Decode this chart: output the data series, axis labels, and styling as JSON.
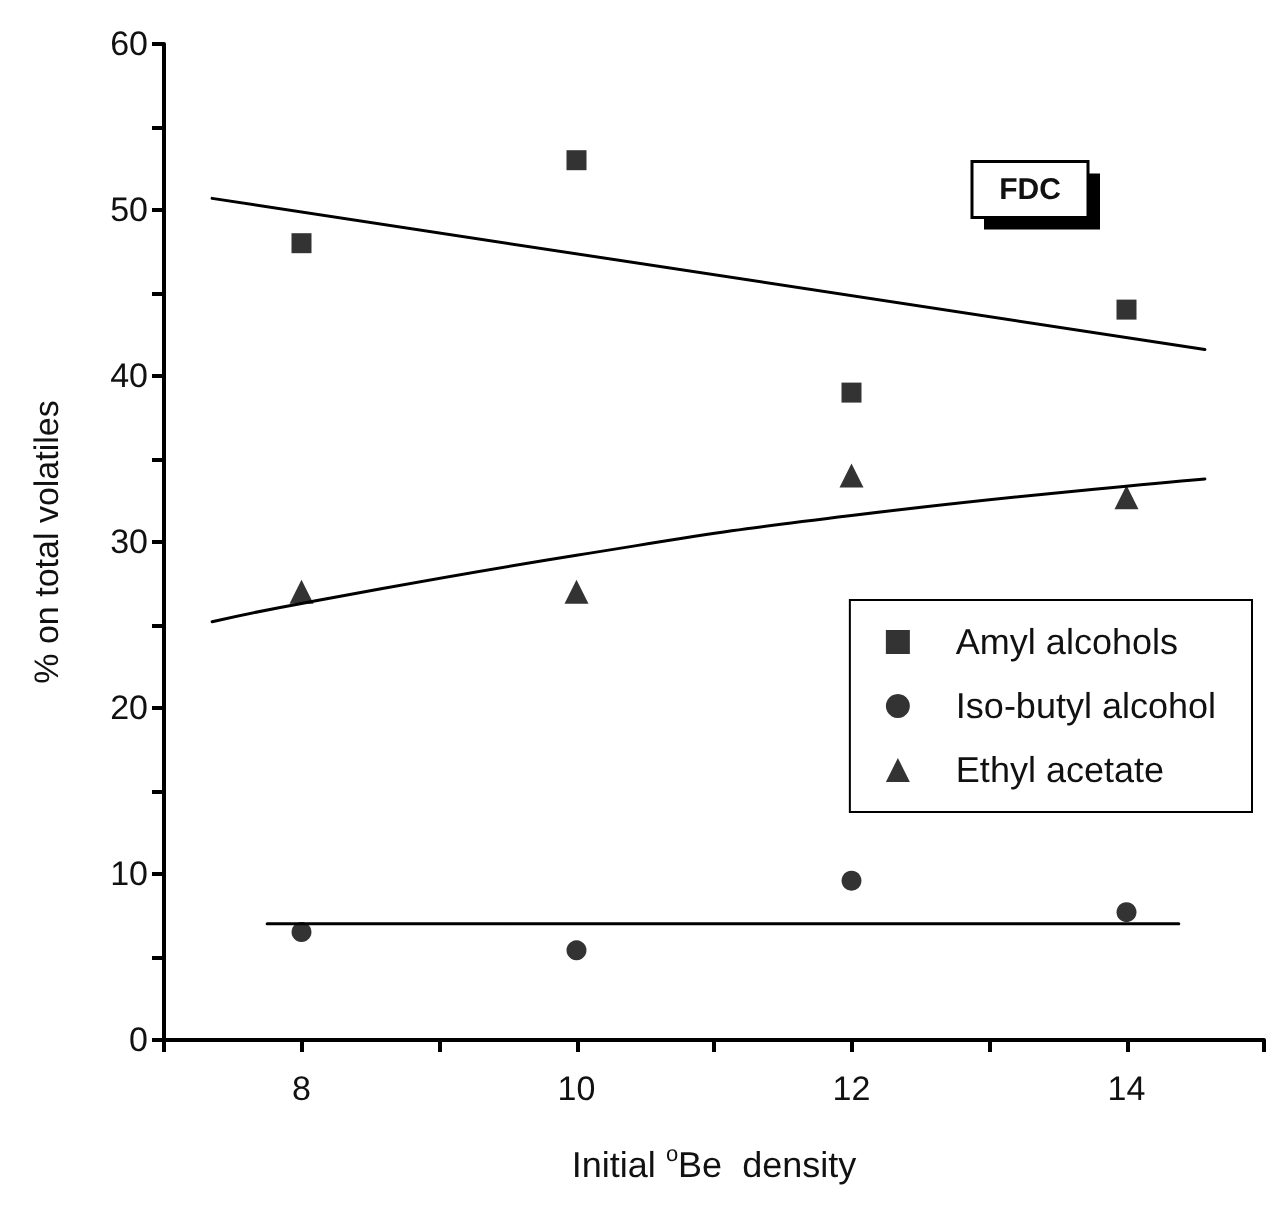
{
  "chart_data": {
    "type": "scatter",
    "xlabel": "Initial $^{o}$Be  density",
    "ylabel": "% on total volatiles",
    "x": [
      8,
      10,
      12,
      14
    ],
    "series": [
      {
        "name": "Amyl alcohols",
        "color": "#000000",
        "marker": "square",
        "values": [
          48,
          53,
          39,
          44
        ]
      },
      {
        "name": "Iso-butyl alcohol",
        "color": "#000000",
        "marker": "circle",
        "values": [
          6.5,
          5.4,
          9.6,
          7.7
        ]
      },
      {
        "name": "Ethyl acetate",
        "color": "#000000",
        "marker": "triangle",
        "values": [
          27,
          27,
          34,
          32.7
        ]
      },
      {
        "type": "line",
        "color": "#000000",
        "marker": "none",
        "x": [
          7.35,
          14.57
        ],
        "values": [
          50.7,
          41.6
        ]
      },
      {
        "type": "line",
        "color": "#000000",
        "marker": "none",
        "x": [
          7.35,
          8,
          10,
          12,
          14.57
        ],
        "values": [
          25.2,
          26.3,
          29.2,
          31.6,
          33.8
        ]
      },
      {
        "type": "line",
        "color": "#000000",
        "marker": "none",
        "x": [
          7.75,
          14.38
        ],
        "values": [
          7.0,
          7.0
        ]
      }
    ],
    "xlim": [
      7,
      15
    ],
    "xticks": [
      {
        "value": 7,
        "label": null
      },
      8,
      {
        "value": 9,
        "label": null
      },
      10,
      {
        "value": 11,
        "label": null
      },
      12,
      {
        "value": 13,
        "label": null
      },
      14,
      {
        "value": 15,
        "label": null
      }
    ],
    "ylim": [
      0,
      60
    ],
    "yticks": [
      0,
      {
        "value": 5,
        "label": null
      },
      10,
      {
        "value": 15,
        "label": null
      },
      20,
      {
        "value": 25,
        "label": null
      },
      30,
      {
        "value": 35,
        "label": null
      },
      40,
      {
        "value": 45,
        "label": null
      },
      50,
      {
        "value": 55,
        "label": null
      },
      60
    ],
    "annotations": [
      "FDC"
    ],
    "legend": "right",
    "grid": false
  }
}
